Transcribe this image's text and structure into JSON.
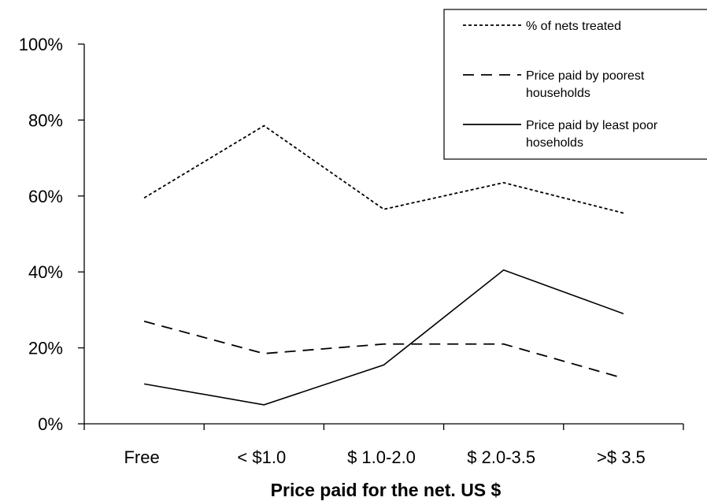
{
  "chart_data": {
    "type": "line",
    "categories": [
      "Free",
      "< $1.0",
      "$ 1.0-2.0",
      "$ 2.0-3.5",
      ">$ 3.5"
    ],
    "xlabel": "Price paid for the net. US $",
    "ylabel": "",
    "ylim": [
      0,
      100
    ],
    "yticks": [
      "0%",
      "20%",
      "40%",
      "60%",
      "80%",
      "100%"
    ],
    "ytick_values": [
      0,
      20,
      40,
      60,
      80,
      100
    ],
    "grid": false,
    "legend_position": "top-right",
    "series": [
      {
        "name": "% of nets treated",
        "style": "dotted",
        "values": [
          59.5,
          78.5,
          56.5,
          63.5,
          55.5
        ]
      },
      {
        "name": "Price paid by poorest households",
        "name_lines": [
          "Price paid by poorest",
          "households"
        ],
        "style": "dashed",
        "values": [
          27,
          18.5,
          21,
          21,
          12
        ]
      },
      {
        "name": "Price paid by least poor hoseholds",
        "name_lines": [
          "Price paid by least poor",
          "hoseholds"
        ],
        "style": "solid",
        "values": [
          10.5,
          5,
          15.5,
          40.5,
          29
        ]
      }
    ],
    "color": "#000000"
  }
}
